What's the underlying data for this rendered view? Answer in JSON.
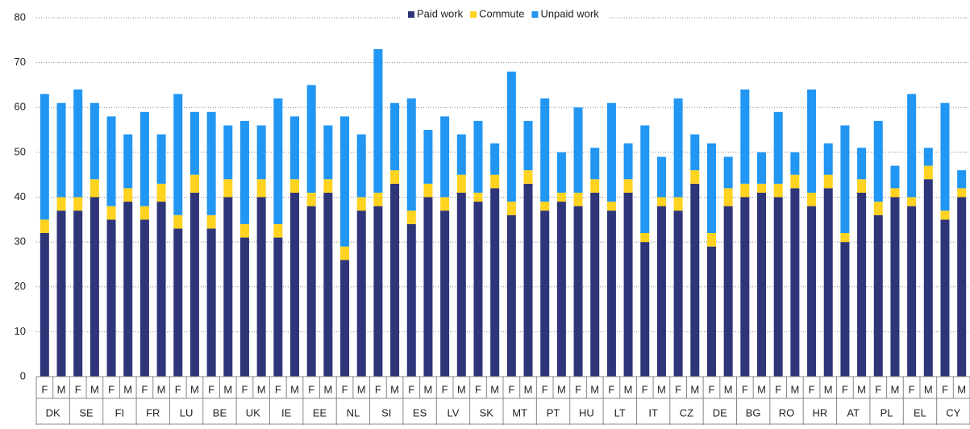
{
  "chart_data": {
    "type": "stacked_bar",
    "categories": [
      "F",
      "M",
      "F",
      "M",
      "F",
      "M",
      "F",
      "M",
      "F",
      "M",
      "F",
      "M",
      "F",
      "M",
      "F",
      "M",
      "F",
      "M",
      "F",
      "M",
      "F",
      "M",
      "F",
      "M",
      "F",
      "M",
      "F",
      "M",
      "F",
      "M",
      "F",
      "M",
      "F",
      "M",
      "F",
      "M",
      "F",
      "M",
      "F",
      "M",
      "F",
      "M",
      "F",
      "M",
      "F",
      "M",
      "F",
      "M",
      "F",
      "M",
      "F",
      "M",
      "F",
      "M",
      "F",
      "M"
    ],
    "groups": [
      "DK",
      "SE",
      "FI",
      "FR",
      "LU",
      "BE",
      "UK",
      "IE",
      "EE",
      "NL",
      "SI",
      "ES",
      "LV",
      "SK",
      "MT",
      "PT",
      "HU",
      "LT",
      "IT",
      "CZ",
      "DE",
      "BG",
      "RO",
      "HR",
      "AT",
      "PL",
      "EL",
      "CY"
    ],
    "series": [
      {
        "name": "Paid work",
        "color": "#2e3579",
        "values": [
          32,
          37,
          37,
          40,
          35,
          39,
          35,
          39,
          33,
          41,
          33,
          40,
          31,
          40,
          31,
          41,
          38,
          41,
          26,
          37,
          38,
          43,
          34,
          40,
          37,
          41,
          39,
          42,
          36,
          43,
          37,
          39,
          38,
          41,
          37,
          41,
          30,
          38,
          37,
          43,
          29,
          38,
          40,
          41,
          40,
          42,
          38,
          42,
          30,
          41,
          36,
          40,
          38,
          44,
          35,
          40
        ]
      },
      {
        "name": "Commute",
        "color": "#ffd320",
        "values": [
          3,
          3,
          3,
          4,
          3,
          3,
          3,
          4,
          3,
          4,
          3,
          4,
          3,
          4,
          3,
          3,
          3,
          3,
          3,
          3,
          3,
          3,
          3,
          3,
          3,
          4,
          2,
          3,
          3,
          3,
          2,
          2,
          3,
          3,
          2,
          3,
          2,
          2,
          3,
          3,
          3,
          4,
          3,
          2,
          3,
          3,
          3,
          3,
          2,
          3,
          3,
          2,
          2,
          3,
          2,
          2
        ]
      },
      {
        "name": "Unpaid work",
        "color": "#2196f3",
        "values": [
          28,
          21,
          24,
          17,
          20,
          12,
          21,
          11,
          27,
          14,
          23,
          12,
          23,
          12,
          28,
          14,
          24,
          12,
          29,
          14,
          32,
          15,
          25,
          12,
          18,
          9,
          16,
          7,
          29,
          11,
          23,
          9,
          19,
          7,
          22,
          8,
          24,
          9,
          22,
          8,
          20,
          7,
          21,
          7,
          16,
          5,
          23,
          7,
          24,
          7,
          18,
          5,
          23,
          4,
          24,
          4
        ]
      }
    ],
    "ylim": [
      0,
      80
    ],
    "yticks": [
      0,
      10,
      20,
      30,
      40,
      50,
      60,
      70,
      80
    ],
    "grid": true
  }
}
